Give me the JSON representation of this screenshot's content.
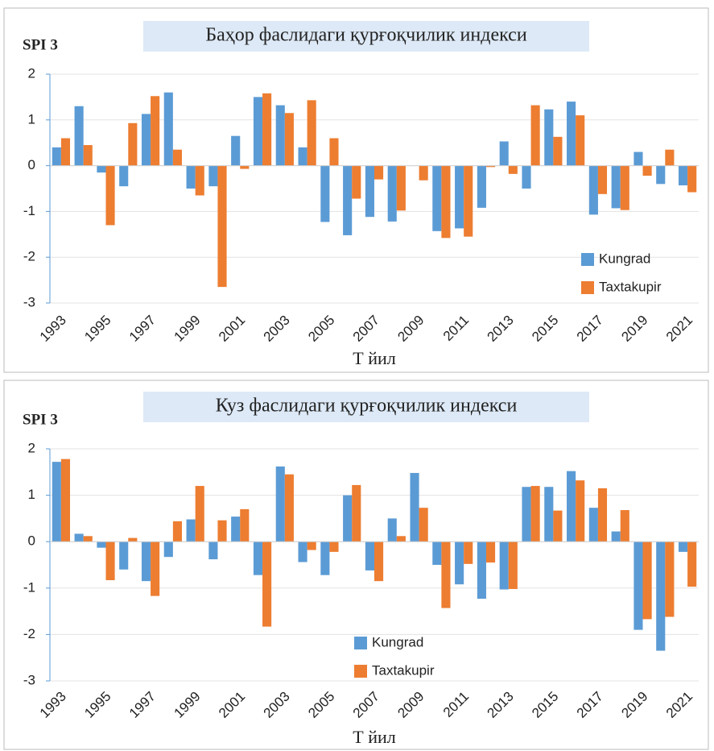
{
  "chart_data": [
    {
      "type": "bar",
      "title": "Баҳор фаслидаги қурғоқчилик индекси",
      "ylabel": "SPI 3",
      "xlabel": "Т йил",
      "categories": [
        "1993",
        null,
        "1995",
        null,
        "1997",
        null,
        "1999",
        null,
        "2001",
        null,
        "2003",
        null,
        "2005",
        null,
        "2007",
        null,
        "2009",
        null,
        "2011",
        null,
        "2013",
        null,
        "2015",
        null,
        "2017",
        null,
        "2019",
        null,
        "2021"
      ],
      "series": [
        {
          "name": "Kungrad",
          "color": "#5b9bd5",
          "values": [
            0.4,
            1.3,
            -0.15,
            -0.45,
            1.13,
            1.6,
            -0.5,
            -0.45,
            0.65,
            1.5,
            1.32,
            0.4,
            -1.23,
            -1.52,
            -1.12,
            -1.22,
            0,
            -1.43,
            -1.37,
            -0.92,
            0.53,
            -0.5,
            1.23,
            1.4,
            -1.07,
            -0.93,
            0.3,
            -0.4,
            -0.43
          ]
        },
        {
          "name": "Taxtakupir",
          "color": "#ed7d31",
          "values": [
            0.6,
            0.45,
            -1.3,
            0.93,
            1.52,
            0.35,
            -0.65,
            -2.65,
            -0.07,
            1.58,
            1.15,
            1.43,
            0.6,
            -0.72,
            -0.3,
            -0.98,
            -0.32,
            -1.58,
            -1.55,
            -0.03,
            -0.18,
            1.32,
            0.63,
            1.1,
            -0.62,
            -0.97,
            -0.22,
            0.35,
            -0.58
          ]
        }
      ],
      "ylim": [
        -3,
        2
      ],
      "yticks": [
        -3,
        -2,
        -1,
        0,
        1,
        2
      ],
      "grid": true,
      "legend": "lower right"
    },
    {
      "type": "bar",
      "title": "Куз фаслидаги қурғоқчилик индекси",
      "ylabel": "SPI 3",
      "xlabel": "Т йил",
      "categories": [
        "1993",
        null,
        "1995",
        null,
        "1997",
        null,
        "1999",
        null,
        "2001",
        null,
        "2003",
        null,
        "2005",
        null,
        "2007",
        null,
        "2009",
        null,
        "2011",
        null,
        "2013",
        null,
        "2015",
        null,
        "2017",
        null,
        "2019",
        null,
        "2021"
      ],
      "series": [
        {
          "name": "Kungrad",
          "color": "#5b9bd5",
          "values": [
            1.72,
            0.17,
            -0.13,
            -0.6,
            -0.85,
            -0.33,
            0.48,
            -0.38,
            0.54,
            -0.72,
            1.62,
            -0.44,
            -0.72,
            1.0,
            -0.62,
            0.5,
            1.48,
            -0.5,
            -0.92,
            -1.23,
            -1.03,
            1.18,
            1.18,
            1.52,
            0.73,
            0.22,
            -1.9,
            -2.35,
            -0.22
          ]
        },
        {
          "name": "Taxtakupir",
          "color": "#ed7d31",
          "values": [
            1.78,
            0.12,
            -0.83,
            0.08,
            -1.17,
            0.44,
            1.2,
            0.46,
            0.7,
            -1.83,
            1.45,
            -0.18,
            -0.22,
            1.22,
            -0.85,
            0.12,
            0.73,
            -1.43,
            -0.48,
            -0.45,
            -1.02,
            1.2,
            0.67,
            1.32,
            1.15,
            0.68,
            -1.67,
            -1.62,
            -0.97
          ]
        }
      ],
      "ylim": [
        -3,
        2
      ],
      "yticks": [
        -3,
        -2,
        -1,
        0,
        1,
        2
      ],
      "grid": true,
      "legend": "lower center"
    }
  ]
}
